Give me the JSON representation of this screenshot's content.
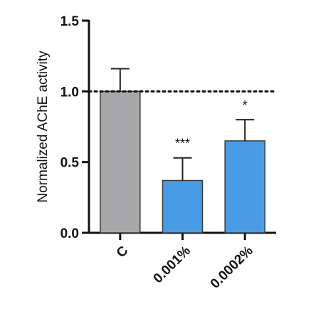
{
  "chart_data": {
    "type": "bar",
    "categories": [
      "C",
      "0.001%",
      "0.0002%"
    ],
    "values": [
      1.0,
      0.37,
      0.65
    ],
    "errors": [
      0.16,
      0.16,
      0.15
    ],
    "significance": [
      "",
      "***",
      "*"
    ],
    "colors": [
      "#a7a7a9",
      "#4a9be6",
      "#4a9be6"
    ],
    "bar_outline": "#3a3a3a",
    "ylabel": "Normalized AChE activity",
    "xlabel": "",
    "ylim": [
      0,
      1.5
    ],
    "yticks": [
      "0.0",
      "0.5",
      "1.0",
      "1.5"
    ],
    "reference_line": {
      "y": 1.0,
      "style": "dotted"
    },
    "grid": false,
    "legend": "none"
  }
}
